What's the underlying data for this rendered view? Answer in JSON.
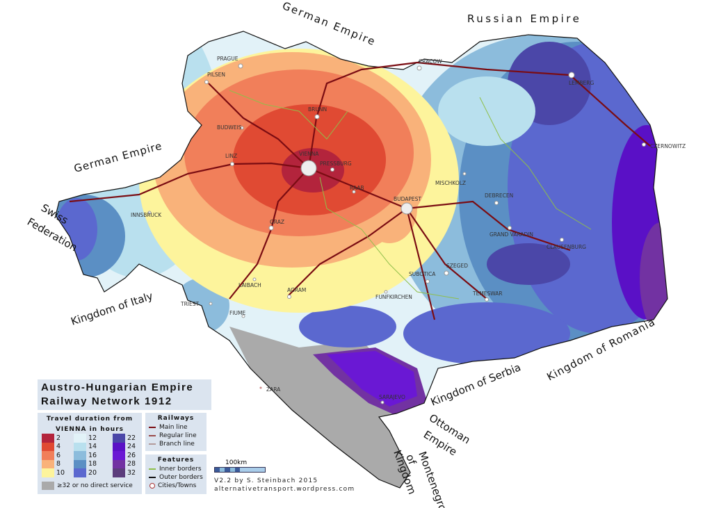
{
  "title": {
    "line1": "Austro-Hungarian Empire",
    "line2": "Railway Network 1912"
  },
  "duration_legend": {
    "heading1": "Travel duration from",
    "heading2": "VIENNA in hours",
    "classes": [
      {
        "label": "2",
        "color": "#b3243c"
      },
      {
        "label": "4",
        "color": "#e04a33"
      },
      {
        "label": "6",
        "color": "#f17f5a"
      },
      {
        "label": "8",
        "color": "#f9b27a"
      },
      {
        "label": "10",
        "color": "#fdf49c"
      },
      {
        "label": "12",
        "color": "#e2f2f8"
      },
      {
        "label": "14",
        "color": "#b9e0ee"
      },
      {
        "label": "16",
        "color": "#8cbcdc"
      },
      {
        "label": "18",
        "color": "#5b8fc4"
      },
      {
        "label": "20",
        "color": "#5b68cf"
      },
      {
        "label": "22",
        "color": "#4b47a8"
      },
      {
        "label": "24",
        "color": "#5a10c6"
      },
      {
        "label": "26",
        "color": "#6a18d4"
      },
      {
        "label": "28",
        "color": "#7232a2"
      },
      {
        "label": "32",
        "color": "#5c3d7c"
      }
    ],
    "no_service": {
      "label": "≥32 or no direct service",
      "color": "#aaaaaa"
    }
  },
  "railways": {
    "heading": "Railways",
    "items": [
      {
        "label": "Main line",
        "color": "#7a0c12"
      },
      {
        "label": "Regular line",
        "color": "#9a4a4a"
      },
      {
        "label": "Branch line",
        "color": "#b39a9a"
      }
    ]
  },
  "features": {
    "heading": "Features",
    "items": [
      {
        "label": "Inner borders",
        "color": "#8fbf4a"
      },
      {
        "label": "Outer borders",
        "color": "#111111"
      },
      {
        "label": "Cities/Towns",
        "color": "#aa3333"
      }
    ]
  },
  "scale": {
    "label": "100km"
  },
  "credit": {
    "line1": "V2.2 by  S. Steinbach 2015",
    "line2": "alternativetransport.wordpress.com"
  },
  "countries": {
    "german_north": "German Empire",
    "russian": "Russian Empire",
    "german_west": "German Empire",
    "swiss1": "Swiss",
    "swiss2": "Federation",
    "italy": "Kingdom of Italy",
    "serbia": "Kingdom of Serbia",
    "romania": "Kingdom of Romania",
    "ottoman1": "Ottoman",
    "ottoman2": "Empire",
    "montenegro1": "Kingdom",
    "montenegro2": "of",
    "montenegro3": "Montenegro"
  },
  "cities": {
    "vienna": "VIENNA",
    "budapest": "BUDAPEST",
    "prague": "PRAGUE",
    "pilsen": "PILSEN",
    "brunn": "BRUNN",
    "budweis": "BUDWEIS",
    "linz": "LINZ",
    "pressburg": "PRESSBURG",
    "raab": "RAAB",
    "graz": "GRAZ",
    "innsbruck": "INNSBRUCK",
    "laibach": "LAIBACH",
    "triest": "TRIEST",
    "fiume": "FIUME",
    "agram": "AGRAM",
    "funfkirchen": "FUNFKIRCHEN",
    "subotica": "SUBOTICA",
    "szeged": "SZEGED",
    "temeswar": "TEMESWAR",
    "cracow": "CRACOW",
    "lemberg": "LEMBERG",
    "czernowitz": "CZERNOWITZ",
    "mischkolz": "MISCHKOLZ",
    "debrecen": "DEBRECEN",
    "grand_varadin": "GRAND VARADIN",
    "clausenburg": "CLAUSENBURG",
    "zara": "ZARA",
    "sarajevo": "SARAJEVO"
  }
}
